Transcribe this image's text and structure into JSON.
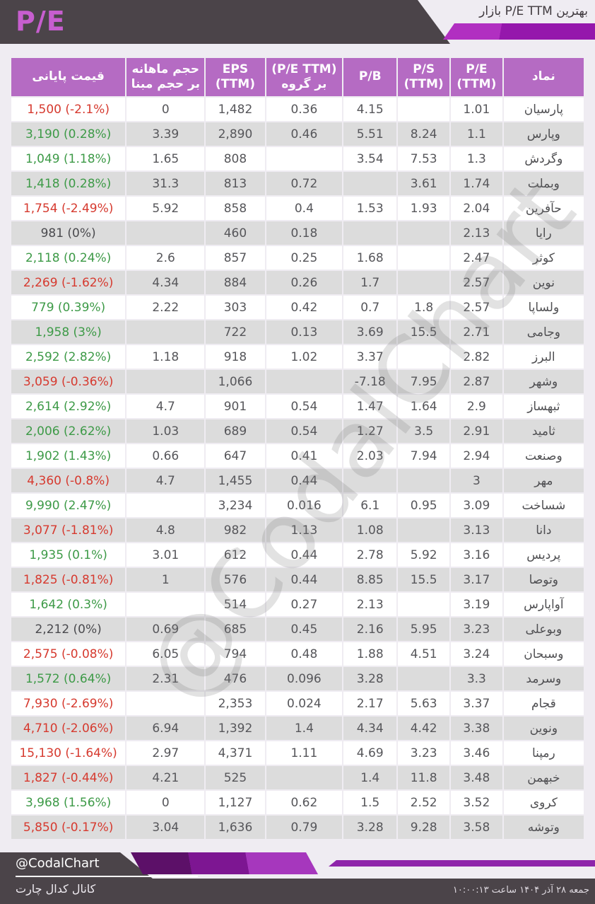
{
  "header": {
    "badge": "P/E",
    "caption": "بهترین P/E TTM بازار"
  },
  "watermark": "@CodalChart",
  "footer": {
    "handle": "@CodalChart",
    "channel_label": "کانال کدال چارت",
    "datetime": "جمعه ۲۸ آذر ۱۴۰۴ ساعت ۱۰:۰۰:۱۳"
  },
  "colors": {
    "accent_magenta": "#c75ecf",
    "table_header_purple": "#b56bc3",
    "dark_gray": "#4b4449",
    "positive_green": "#3d9a47",
    "negative_red": "#d63a2f",
    "neutral_text": "#4a4a4e",
    "alt_row_gray": "#dcdcdc",
    "band_purple_light": "#a637bd",
    "band_purple_mid": "#7d1692",
    "band_purple_dark": "#5c1068"
  },
  "chart_data": {
    "type": "table",
    "title": "بهترین P/E TTM بازار",
    "columns": [
      {
        "id": "symbol",
        "lines": [
          "نماد"
        ]
      },
      {
        "id": "pe_ttm",
        "lines": [
          "P/E",
          "(TTM)"
        ]
      },
      {
        "id": "ps_ttm",
        "lines": [
          "P/S",
          "(TTM)"
        ]
      },
      {
        "id": "pb",
        "lines": [
          "P/B"
        ]
      },
      {
        "id": "pe_ttm_group",
        "lines": [
          "(P/E TTM)",
          "بر گروه"
        ]
      },
      {
        "id": "eps_ttm",
        "lines": [
          "EPS",
          "(TTM)"
        ]
      },
      {
        "id": "monthly_vol_over_base",
        "lines": [
          "حجم ماهانه",
          "بر حجم مبنا"
        ]
      },
      {
        "id": "close_price",
        "lines": [
          "قیمت پایانی"
        ]
      }
    ],
    "rows": [
      {
        "symbol": "پارسیان",
        "pe_ttm": "1.01",
        "ps_ttm": "",
        "pb": "4.15",
        "pe_ttm_group": "0.36",
        "eps_ttm": "1,482",
        "monthly_vol_over_base": "0",
        "close_price": "1,500 (-2.1%)",
        "trend": "down"
      },
      {
        "symbol": "وپارس",
        "pe_ttm": "1.1",
        "ps_ttm": "8.24",
        "pb": "5.51",
        "pe_ttm_group": "0.46",
        "eps_ttm": "2,890",
        "monthly_vol_over_base": "3.39",
        "close_price": "3,190 (0.28%)",
        "trend": "up"
      },
      {
        "symbol": "وگردش",
        "pe_ttm": "1.3",
        "ps_ttm": "7.53",
        "pb": "3.54",
        "pe_ttm_group": "",
        "eps_ttm": "808",
        "monthly_vol_over_base": "1.65",
        "close_price": "1,049 (1.18%)",
        "trend": "up"
      },
      {
        "symbol": "وبملت",
        "pe_ttm": "1.74",
        "ps_ttm": "3.61",
        "pb": "",
        "pe_ttm_group": "0.72",
        "eps_ttm": "813",
        "monthly_vol_over_base": "31.3",
        "close_price": "1,418 (0.28%)",
        "trend": "up"
      },
      {
        "symbol": "حآفرین",
        "pe_ttm": "2.04",
        "ps_ttm": "1.93",
        "pb": "1.53",
        "pe_ttm_group": "0.4",
        "eps_ttm": "858",
        "monthly_vol_over_base": "5.92",
        "close_price": "1,754 (-2.49%)",
        "trend": "down"
      },
      {
        "symbol": "رایا",
        "pe_ttm": "2.13",
        "ps_ttm": "",
        "pb": "",
        "pe_ttm_group": "0.18",
        "eps_ttm": "460",
        "monthly_vol_over_base": "",
        "close_price": "981 (0%)",
        "trend": "flat"
      },
      {
        "symbol": "کوثر",
        "pe_ttm": "2.47",
        "ps_ttm": "",
        "pb": "1.68",
        "pe_ttm_group": "0.25",
        "eps_ttm": "857",
        "monthly_vol_over_base": "2.6",
        "close_price": "2,118 (0.24%)",
        "trend": "up"
      },
      {
        "symbol": "نوین",
        "pe_ttm": "2.57",
        "ps_ttm": "",
        "pb": "1.7",
        "pe_ttm_group": "0.26",
        "eps_ttm": "884",
        "monthly_vol_over_base": "4.34",
        "close_price": "2,269 (-1.62%)",
        "trend": "down"
      },
      {
        "symbol": "ولساپا",
        "pe_ttm": "2.57",
        "ps_ttm": "1.8",
        "pb": "0.7",
        "pe_ttm_group": "0.42",
        "eps_ttm": "303",
        "monthly_vol_over_base": "2.22",
        "close_price": "779 (0.39%)",
        "trend": "up"
      },
      {
        "symbol": "وجامی",
        "pe_ttm": "2.71",
        "ps_ttm": "15.5",
        "pb": "3.69",
        "pe_ttm_group": "0.13",
        "eps_ttm": "722",
        "monthly_vol_over_base": "",
        "close_price": "1,958 (3%)",
        "trend": "up"
      },
      {
        "symbol": "البرز",
        "pe_ttm": "2.82",
        "ps_ttm": "",
        "pb": "3.37",
        "pe_ttm_group": "1.02",
        "eps_ttm": "918",
        "monthly_vol_over_base": "1.18",
        "close_price": "2,592 (2.82%)",
        "trend": "up"
      },
      {
        "symbol": "وشهر",
        "pe_ttm": "2.87",
        "ps_ttm": "7.95",
        "pb": "-7.18",
        "pe_ttm_group": "",
        "eps_ttm": "1,066",
        "monthly_vol_over_base": "",
        "close_price": "3,059 (-0.36%)",
        "trend": "down"
      },
      {
        "symbol": "ثبهساز",
        "pe_ttm": "2.9",
        "ps_ttm": "1.64",
        "pb": "1.47",
        "pe_ttm_group": "0.54",
        "eps_ttm": "901",
        "monthly_vol_over_base": "4.7",
        "close_price": "2,614 (2.92%)",
        "trend": "up"
      },
      {
        "symbol": "ثامید",
        "pe_ttm": "2.91",
        "ps_ttm": "3.5",
        "pb": "1.27",
        "pe_ttm_group": "0.54",
        "eps_ttm": "689",
        "monthly_vol_over_base": "1.03",
        "close_price": "2,006 (2.62%)",
        "trend": "up"
      },
      {
        "symbol": "وصنعت",
        "pe_ttm": "2.94",
        "ps_ttm": "7.94",
        "pb": "2.03",
        "pe_ttm_group": "0.41",
        "eps_ttm": "647",
        "monthly_vol_over_base": "0.66",
        "close_price": "1,902 (1.43%)",
        "trend": "up"
      },
      {
        "symbol": "مهر",
        "pe_ttm": "3",
        "ps_ttm": "",
        "pb": "",
        "pe_ttm_group": "0.44",
        "eps_ttm": "1,455",
        "monthly_vol_over_base": "4.7",
        "close_price": "4,360 (-0.8%)",
        "trend": "down"
      },
      {
        "symbol": "شساخت",
        "pe_ttm": "3.09",
        "ps_ttm": "0.95",
        "pb": "6.1",
        "pe_ttm_group": "0.016",
        "eps_ttm": "3,234",
        "monthly_vol_over_base": "",
        "close_price": "9,990 (2.47%)",
        "trend": "up"
      },
      {
        "symbol": "دانا",
        "pe_ttm": "3.13",
        "ps_ttm": "",
        "pb": "1.08",
        "pe_ttm_group": "1.13",
        "eps_ttm": "982",
        "monthly_vol_over_base": "4.8",
        "close_price": "3,077 (-1.81%)",
        "trend": "down"
      },
      {
        "symbol": "پردیس",
        "pe_ttm": "3.16",
        "ps_ttm": "5.92",
        "pb": "2.78",
        "pe_ttm_group": "0.44",
        "eps_ttm": "612",
        "monthly_vol_over_base": "3.01",
        "close_price": "1,935 (0.1%)",
        "trend": "up"
      },
      {
        "symbol": "وتوصا",
        "pe_ttm": "3.17",
        "ps_ttm": "15.5",
        "pb": "8.85",
        "pe_ttm_group": "0.44",
        "eps_ttm": "576",
        "monthly_vol_over_base": "1",
        "close_price": "1,825 (-0.81%)",
        "trend": "down"
      },
      {
        "symbol": "آواپارس",
        "pe_ttm": "3.19",
        "ps_ttm": "",
        "pb": "2.13",
        "pe_ttm_group": "0.27",
        "eps_ttm": "514",
        "monthly_vol_over_base": "",
        "close_price": "1,642 (0.3%)",
        "trend": "up"
      },
      {
        "symbol": "وبوعلی",
        "pe_ttm": "3.23",
        "ps_ttm": "5.95",
        "pb": "2.16",
        "pe_ttm_group": "0.45",
        "eps_ttm": "685",
        "monthly_vol_over_base": "0.69",
        "close_price": "2,212 (0%)",
        "trend": "flat"
      },
      {
        "symbol": "وسبحان",
        "pe_ttm": "3.24",
        "ps_ttm": "4.51",
        "pb": "1.88",
        "pe_ttm_group": "0.48",
        "eps_ttm": "794",
        "monthly_vol_over_base": "6.05",
        "close_price": "2,575 (-0.08%)",
        "trend": "down"
      },
      {
        "symbol": "وسرمد",
        "pe_ttm": "3.3",
        "ps_ttm": "",
        "pb": "3.28",
        "pe_ttm_group": "0.096",
        "eps_ttm": "476",
        "monthly_vol_over_base": "2.31",
        "close_price": "1,572 (0.64%)",
        "trend": "up"
      },
      {
        "symbol": "قجام",
        "pe_ttm": "3.37",
        "ps_ttm": "5.63",
        "pb": "2.17",
        "pe_ttm_group": "0.024",
        "eps_ttm": "2,353",
        "monthly_vol_over_base": "",
        "close_price": "7,930 (-2.69%)",
        "trend": "down"
      },
      {
        "symbol": "ونوین",
        "pe_ttm": "3.38",
        "ps_ttm": "4.42",
        "pb": "4.34",
        "pe_ttm_group": "1.4",
        "eps_ttm": "1,392",
        "monthly_vol_over_base": "6.94",
        "close_price": "4,710 (-2.06%)",
        "trend": "down"
      },
      {
        "symbol": "رمپنا",
        "pe_ttm": "3.46",
        "ps_ttm": "3.23",
        "pb": "4.69",
        "pe_ttm_group": "1.11",
        "eps_ttm": "4,371",
        "monthly_vol_over_base": "2.97",
        "close_price": "15,130 (-1.64%)",
        "trend": "down"
      },
      {
        "symbol": "خبهمن",
        "pe_ttm": "3.48",
        "ps_ttm": "11.8",
        "pb": "1.4",
        "pe_ttm_group": "",
        "eps_ttm": "525",
        "monthly_vol_over_base": "4.21",
        "close_price": "1,827 (-0.44%)",
        "trend": "down"
      },
      {
        "symbol": "کروی",
        "pe_ttm": "3.52",
        "ps_ttm": "2.52",
        "pb": "1.5",
        "pe_ttm_group": "0.62",
        "eps_ttm": "1,127",
        "monthly_vol_over_base": "0",
        "close_price": "3,968 (1.56%)",
        "trend": "up"
      },
      {
        "symbol": "وتوشه",
        "pe_ttm": "3.58",
        "ps_ttm": "9.28",
        "pb": "3.28",
        "pe_ttm_group": "0.79",
        "eps_ttm": "1,636",
        "monthly_vol_over_base": "3.04",
        "close_price": "5,850 (-0.17%)",
        "trend": "down"
      }
    ]
  }
}
